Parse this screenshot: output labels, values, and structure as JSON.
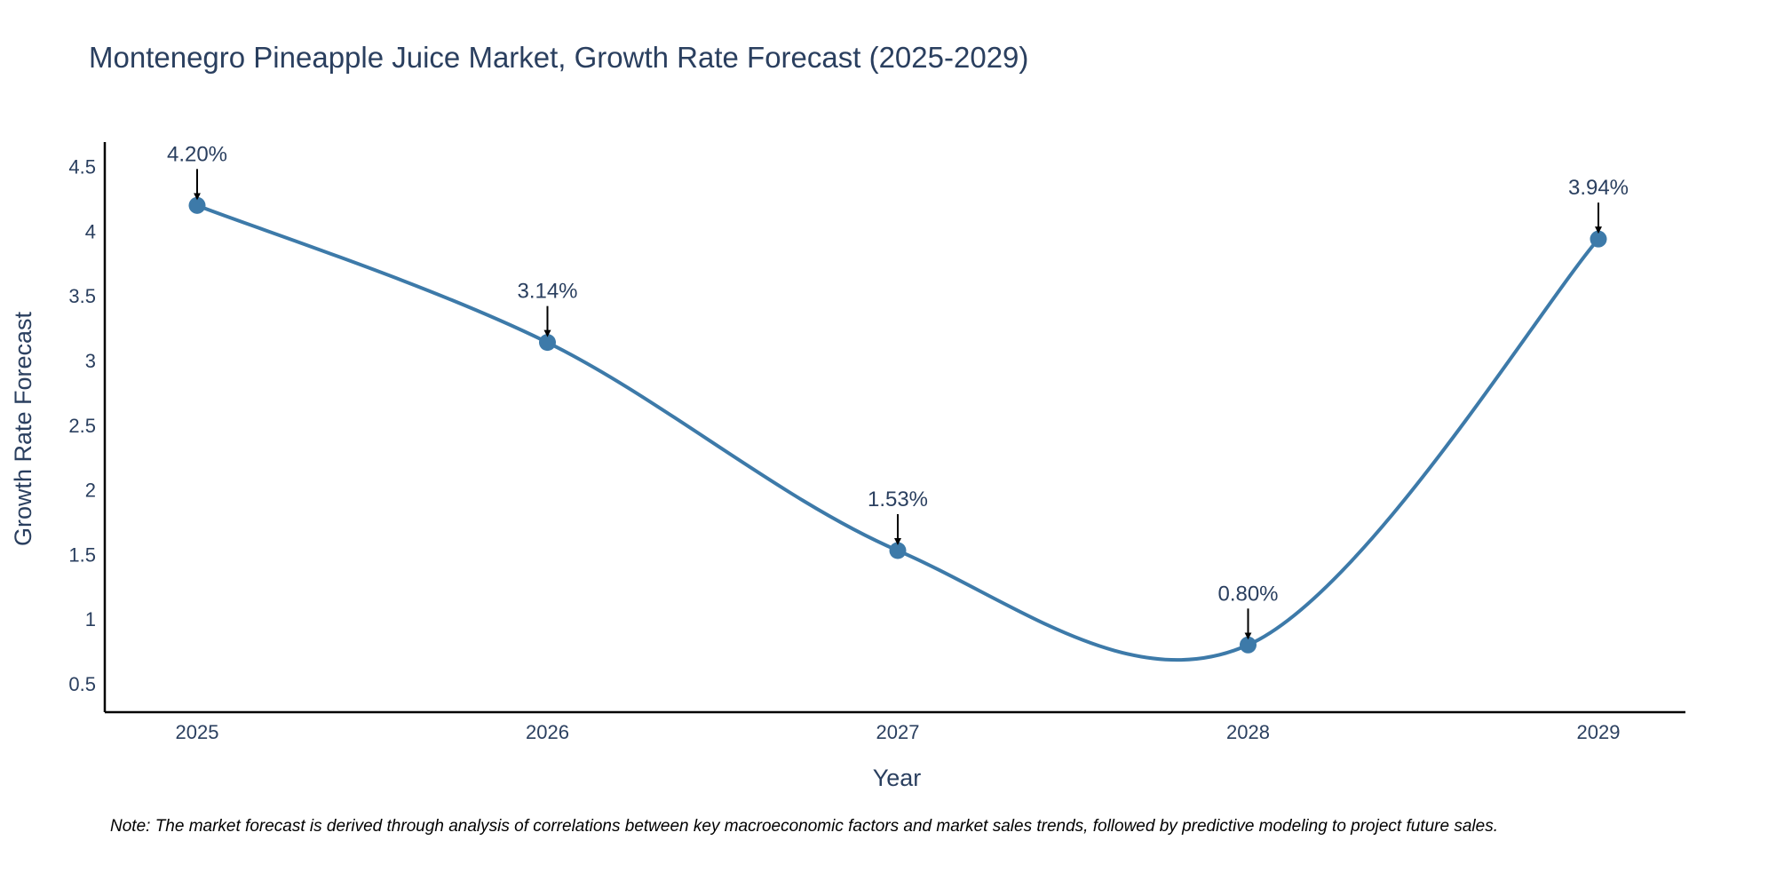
{
  "chart_data": {
    "type": "line",
    "title": "Montenegro Pineapple Juice Market, Growth Rate Forecast (2025-2029)",
    "xlabel": "Year",
    "ylabel": "Growth Rate Forecast",
    "categories": [
      "2025",
      "2026",
      "2027",
      "2028",
      "2029"
    ],
    "series": [
      {
        "name": "Growth Rate Forecast",
        "values": [
          4.2,
          3.14,
          1.53,
          0.8,
          3.94
        ],
        "labels": [
          "4.20%",
          "3.14%",
          "1.53%",
          "0.80%",
          "3.94%"
        ]
      }
    ],
    "yticks": [
      "0.5",
      "1",
      "1.5",
      "2",
      "2.5",
      "3",
      "3.5",
      "4",
      "4.5"
    ],
    "ylim": [
      0.28,
      4.69
    ],
    "grid": false,
    "line_color": "#3d7aa9",
    "note": "Note: The market forecast is derived through analysis of correlations between key macroeconomic factors and market sales trends, followed by predictive modeling to project future sales."
  }
}
